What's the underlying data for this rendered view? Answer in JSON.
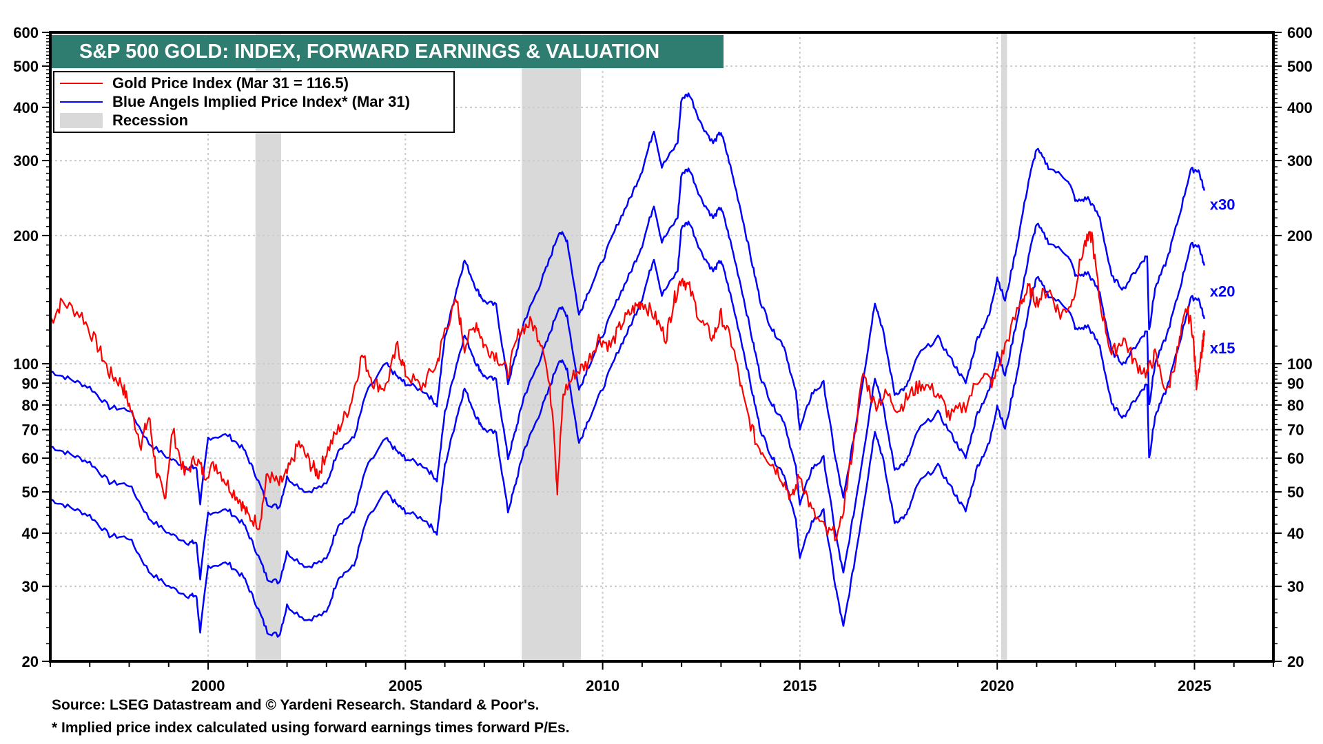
{
  "chart_data": {
    "type": "line",
    "title": "S&P 500 GOLD: INDEX, FORWARD EARNINGS & VALUATION",
    "xlabel": "",
    "ylabel": "",
    "y_scale": "log",
    "ylim": [
      20,
      600
    ],
    "xlim": [
      1996.0,
      2027.0
    ],
    "grid": true,
    "y_ticks": [
      20,
      30,
      40,
      50,
      60,
      70,
      80,
      90,
      100,
      200,
      300,
      400,
      500,
      600
    ],
    "x_ticks": [
      2000,
      2005,
      2010,
      2015,
      2020,
      2025
    ],
    "legend": {
      "placement": "top-left",
      "entries": [
        {
          "label": "Gold Price Index (Mar 31 = 116.5)",
          "color": "#ff0000",
          "kind": "line"
        },
        {
          "label": "Blue Angels Implied Price Index* (Mar 31)",
          "color": "#0000ff",
          "kind": "line"
        },
        {
          "label": "Recession",
          "color": "#d9d9d9",
          "kind": "area"
        }
      ]
    },
    "recessions": [
      {
        "start": 2001.2,
        "end": 2001.85
      },
      {
        "start": 2007.95,
        "end": 2009.45
      },
      {
        "start": 2020.1,
        "end": 2020.25
      }
    ],
    "series": [
      {
        "name": "Gold Price Index",
        "color": "#ff0000",
        "x": [
          1996.0,
          1996.3,
          1996.8,
          1997.2,
          1997.5,
          1997.8,
          1998.0,
          1998.3,
          1998.5,
          1998.7,
          1998.9,
          1999.1,
          1999.4,
          1999.7,
          1999.9,
          2000.2,
          2000.5,
          2000.8,
          2001.0,
          2001.3,
          2001.5,
          2001.8,
          2002.0,
          2002.3,
          2002.6,
          2002.8,
          2003.0,
          2003.3,
          2003.6,
          2003.9,
          2004.2,
          2004.5,
          2004.8,
          2005.0,
          2005.4,
          2005.8,
          2006.0,
          2006.3,
          2006.5,
          2006.8,
          2007.0,
          2007.3,
          2007.6,
          2007.9,
          2008.2,
          2008.5,
          2008.75,
          2008.85,
          2009.0,
          2009.3,
          2009.6,
          2009.9,
          2010.2,
          2010.5,
          2010.8,
          2011.0,
          2011.3,
          2011.6,
          2011.8,
          2012.0,
          2012.2,
          2012.5,
          2012.8,
          2013.0,
          2013.3,
          2013.6,
          2013.9,
          2014.2,
          2014.5,
          2014.8,
          2015.0,
          2015.3,
          2015.7,
          2016.0,
          2016.3,
          2016.6,
          2016.9,
          2017.2,
          2017.5,
          2017.8,
          2018.1,
          2018.5,
          2018.8,
          2019.2,
          2019.6,
          2019.9,
          2020.2,
          2020.6,
          2020.8,
          2021.0,
          2021.3,
          2021.6,
          2021.9,
          2022.2,
          2022.4,
          2022.6,
          2022.9,
          2023.2,
          2023.5,
          2023.8,
          2024.0,
          2024.3,
          2024.6,
          2024.8,
          2024.95,
          2025.05,
          2025.2,
          2025.25
        ],
        "values": [
          125,
          140,
          130,
          110,
          95,
          90,
          80,
          65,
          75,
          55,
          48,
          70,
          55,
          60,
          55,
          58,
          52,
          48,
          44,
          42,
          55,
          52,
          55,
          65,
          58,
          55,
          62,
          70,
          80,
          105,
          90,
          88,
          110,
          95,
          88,
          100,
          120,
          140,
          110,
          125,
          110,
          105,
          95,
          120,
          125,
          110,
          75,
          50,
          85,
          95,
          100,
          115,
          110,
          125,
          135,
          140,
          130,
          115,
          140,
          160,
          150,
          125,
          115,
          130,
          110,
          80,
          65,
          60,
          55,
          48,
          55,
          45,
          40,
          40,
          60,
          95,
          80,
          85,
          78,
          85,
          90,
          85,
          75,
          80,
          95,
          90,
          110,
          140,
          150,
          140,
          150,
          130,
          140,
          190,
          200,
          140,
          105,
          115,
          100,
          95,
          105,
          85,
          110,
          135,
          120,
          90,
          110,
          116.5
        ]
      },
      {
        "name": "Blue Angels Implied Price Index x30",
        "label": "x30",
        "color": "#0000ff",
        "multiple": 30,
        "x": [
          1996.0,
          1996.5,
          1997.0,
          1997.5,
          1998.0,
          1998.5,
          1999.0,
          1999.5,
          1999.7,
          1999.8,
          2000.0,
          2000.5,
          2000.9,
          2001.2,
          2001.5,
          2001.8,
          2002.0,
          2002.5,
          2003.0,
          2003.3,
          2003.7,
          2004.0,
          2004.5,
          2004.8,
          2005.0,
          2005.5,
          2005.8,
          2006.0,
          2006.3,
          2006.5,
          2006.8,
          2007.0,
          2007.3,
          2007.6,
          2007.8,
          2008.0,
          2008.3,
          2008.6,
          2008.9,
          2009.1,
          2009.4,
          2009.6,
          2010.0,
          2010.4,
          2010.7,
          2011.0,
          2011.3,
          2011.5,
          2011.9,
          2012.0,
          2012.2,
          2012.5,
          2012.8,
          2013.0,
          2013.2,
          2013.5,
          2013.8,
          2014.0,
          2014.3,
          2014.6,
          2014.9,
          2015.0,
          2015.3,
          2015.6,
          2015.9,
          2016.1,
          2016.4,
          2016.7,
          2016.9,
          2017.1,
          2017.4,
          2017.7,
          2018.0,
          2018.5,
          2018.9,
          2019.2,
          2019.5,
          2019.8,
          2020.0,
          2020.2,
          2020.5,
          2020.8,
          2021.0,
          2021.3,
          2021.8,
          2022.0,
          2022.3,
          2022.6,
          2022.9,
          2023.2,
          2023.6,
          2023.8,
          2023.85,
          2024.0,
          2024.3,
          2024.6,
          2024.9,
          2025.1,
          2025.25
        ],
        "values": [
          96,
          92,
          88,
          79,
          78,
          65,
          60,
          57,
          57,
          47,
          67,
          68,
          63,
          55,
          47,
          46,
          54,
          50,
          52,
          63,
          67,
          85,
          100,
          93,
          90,
          86,
          80,
          115,
          150,
          175,
          150,
          140,
          137,
          90,
          105,
          125,
          145,
          170,
          205,
          195,
          130,
          145,
          175,
          215,
          245,
          285,
          355,
          290,
          330,
          420,
          430,
          365,
          330,
          350,
          300,
          230,
          170,
          140,
          120,
          110,
          85,
          70,
          85,
          90,
          60,
          48,
          70,
          105,
          140,
          120,
          85,
          88,
          105,
          115,
          100,
          90,
          115,
          130,
          160,
          140,
          190,
          270,
          320,
          290,
          270,
          240,
          245,
          220,
          160,
          150,
          170,
          180,
          120,
          150,
          175,
          220,
          285,
          285,
          255
        ]
      },
      {
        "name": "Blue Angels Implied Price Index x20",
        "label": "x20",
        "color": "#0000ff",
        "multiple": 20,
        "derived_from": "x30 × 2/3"
      },
      {
        "name": "Blue Angels Implied Price Index x15",
        "label": "x15",
        "color": "#0000ff",
        "multiple": 15,
        "derived_from": "x30 × 1/2"
      }
    ],
    "annotations": [
      "x30",
      "x20",
      "x15"
    ]
  },
  "footer": {
    "source": "Source: LSEG Datastream and © Yardeni Research. Standard & Poor's.",
    "note": "* Implied price index calculated using forward earnings times forward P/Es."
  }
}
